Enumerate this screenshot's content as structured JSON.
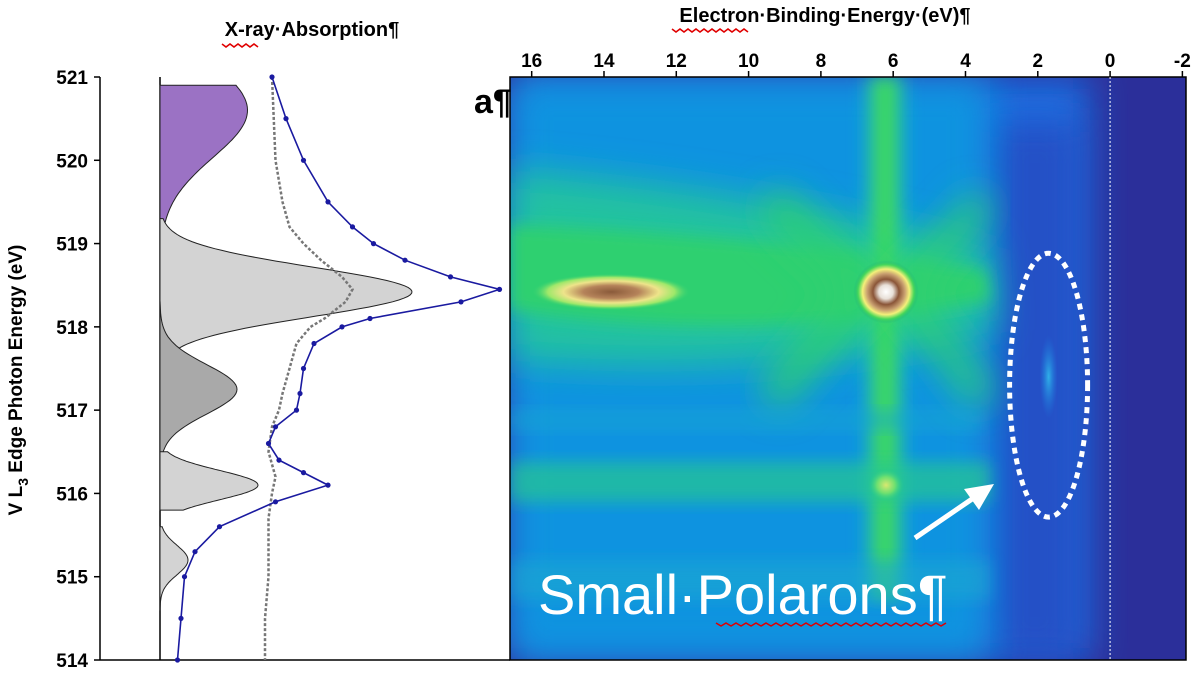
{
  "xas_title": "X-ray·Absorption¶",
  "map_title": "Electron·Binding·Energy·(eV)¶",
  "y_label": {
    "main": "V L",
    "sub": "3",
    "rest": " Edge Photon Energy (eV)"
  },
  "panel_label": "a¶",
  "annotation": "Small·Polarons¶",
  "colors": {
    "blue_trace": "#1a1aa0",
    "gray_trace": "#777777",
    "purple_fill": "#9b72c4",
    "light_gray_fill": "#d3d3d3",
    "dark_gray_fill": "#a9a9a9",
    "map_background": "#2b2f9a"
  },
  "chart_data": [
    {
      "type": "line",
      "y_axis": {
        "lim": [
          514,
          521
        ],
        "ticks": [
          "521",
          "520",
          "519",
          "518",
          "517",
          "516",
          "515",
          "514"
        ]
      },
      "series": [
        {
          "y": [
            521.0,
            520.5,
            520.0,
            519.5,
            519.2,
            519.0,
            518.8,
            518.6,
            518.45,
            518.3,
            518.1,
            518.0,
            517.8,
            517.5,
            517.2,
            517.0,
            516.8,
            516.6,
            516.4,
            516.25,
            516.1,
            515.9,
            515.6,
            515.3,
            515.0,
            514.5,
            514.0
          ],
          "x": [
            0.32,
            0.36,
            0.41,
            0.48,
            0.55,
            0.61,
            0.7,
            0.83,
            0.97,
            0.86,
            0.6,
            0.52,
            0.44,
            0.41,
            0.4,
            0.39,
            0.33,
            0.31,
            0.34,
            0.41,
            0.48,
            0.33,
            0.17,
            0.1,
            0.07,
            0.06,
            0.05
          ]
        },
        {
          "y": [
            521.0,
            520.0,
            519.5,
            519.2,
            519.0,
            518.8,
            518.6,
            518.45,
            518.3,
            518.1,
            518.0,
            517.8,
            517.5,
            517.2,
            517.0,
            516.8,
            516.5,
            516.2,
            516.0,
            515.7,
            515.3,
            515.0,
            514.5,
            514.0
          ],
          "x": [
            0.32,
            0.33,
            0.35,
            0.37,
            0.41,
            0.46,
            0.52,
            0.55,
            0.53,
            0.47,
            0.43,
            0.39,
            0.37,
            0.35,
            0.34,
            0.32,
            0.31,
            0.33,
            0.32,
            0.31,
            0.31,
            0.31,
            0.3,
            0.3
          ]
        }
      ],
      "peaks": [
        {
          "name": "purple",
          "center": 520.6,
          "width": 0.8,
          "height": 0.25,
          "y_range": [
            518.3,
            520.9
          ]
        },
        {
          "name": "main",
          "center": 518.42,
          "width": 0.42,
          "height": 0.72,
          "y_range": [
            517.6,
            519.3
          ]
        },
        {
          "name": "mid",
          "center": 517.25,
          "width": 0.42,
          "height": 0.22,
          "y_range": [
            516.2,
            518.3
          ]
        },
        {
          "name": "lower",
          "center": 516.1,
          "width": 0.25,
          "height": 0.28,
          "y_range": [
            515.8,
            516.5
          ]
        },
        {
          "name": "bottom",
          "center": 515.2,
          "width": 0.25,
          "height": 0.08,
          "y_range": [
            514.6,
            515.6
          ]
        }
      ]
    },
    {
      "type": "heatmap",
      "x_axis": {
        "lim": [
          16.6,
          -2.1
        ],
        "ticks": [
          "16",
          "14",
          "12",
          "10",
          "8",
          "6",
          "4",
          "2",
          "0",
          "-2"
        ]
      },
      "y_axis": {
        "lim": [
          514,
          521
        ]
      },
      "features": [
        {
          "x": 6.2,
          "y": 518.42,
          "wx": 0.9,
          "wy": 0.38,
          "level": 1.0
        },
        {
          "x": 13.8,
          "y": 518.42,
          "wx": 2.2,
          "wy": 0.22,
          "level": 0.85
        },
        {
          "x": 6.2,
          "y": 516.1,
          "wx": 0.5,
          "wy": 0.2,
          "level": 0.5
        },
        {
          "x": 1.7,
          "y": 517.4,
          "wx": 0.25,
          "wy": 0.5,
          "level": 0.18
        }
      ],
      "ellipse": {
        "cx": 1.7,
        "cy": 517.3,
        "rx": 1.2,
        "ry": 2.4
      },
      "zero_line": 0
    }
  ]
}
